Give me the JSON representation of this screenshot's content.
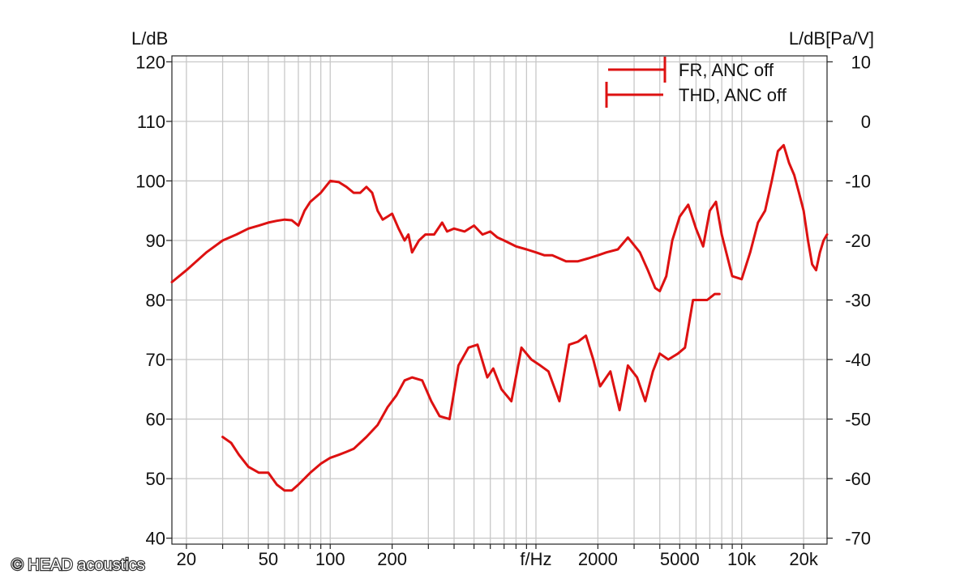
{
  "copyright": "© HEAD acoustics",
  "chart_data": {
    "type": "line",
    "xlabel": "f/Hz",
    "x_scale": "log",
    "xlim": [
      17,
      26000
    ],
    "x_ticks": [
      "20",
      "50",
      "100",
      "200",
      "f/Hz",
      "2000",
      "5000",
      "10k",
      "20k"
    ],
    "left_axis": {
      "label": "L/dB",
      "ylim": [
        39,
        121
      ],
      "ticks": [
        120,
        110,
        100,
        90,
        80,
        70,
        60,
        50,
        40
      ]
    },
    "right_axis": {
      "label": "L/dB[Pa/V]",
      "ylim": [
        -71,
        11
      ],
      "ticks": [
        10,
        0,
        -10,
        -20,
        -30,
        -40,
        -50,
        -60,
        -70
      ]
    },
    "grid": true,
    "legend_position": "top-right",
    "colors": {
      "series": "#dd1111",
      "grid": "#c8c8c8",
      "axis": "#222222"
    },
    "series": [
      {
        "name": "FR, ANC off",
        "axis": "left",
        "x": [
          17,
          20,
          25,
          30,
          35,
          40,
          45,
          50,
          55,
          60,
          65,
          70,
          75,
          80,
          90,
          100,
          110,
          120,
          130,
          140,
          150,
          160,
          170,
          180,
          190,
          200,
          215,
          230,
          240,
          250,
          270,
          290,
          320,
          350,
          370,
          400,
          450,
          500,
          550,
          600,
          650,
          700,
          800,
          900,
          1000,
          1100,
          1200,
          1400,
          1600,
          1800,
          2000,
          2200,
          2500,
          2800,
          3200,
          3500,
          3800,
          4000,
          4300,
          4600,
          5000,
          5500,
          6000,
          6500,
          7000,
          7500,
          8000,
          9000,
          10000,
          11000,
          12000,
          13000,
          14000,
          15000,
          16000,
          17000,
          18000,
          19000,
          20000,
          21000,
          22000,
          23000,
          24000,
          25000,
          26000
        ],
        "values": [
          83,
          85,
          88,
          90,
          91,
          92,
          92.5,
          93,
          93.3,
          93.5,
          93.4,
          92.5,
          95,
          96.5,
          98,
          100,
          99.8,
          99,
          98,
          98,
          99,
          98,
          95,
          93.5,
          94,
          94.5,
          92,
          90,
          91,
          88,
          90,
          91,
          91,
          93,
          91.5,
          92,
          91.5,
          92.5,
          91,
          91.5,
          90.5,
          90,
          89,
          88.5,
          88,
          87.5,
          87.5,
          86.5,
          86.5,
          87,
          87.5,
          88,
          88.5,
          90.5,
          88,
          85,
          82,
          81.5,
          84,
          90,
          94,
          96,
          92,
          89,
          95,
          96.5,
          91,
          84,
          83.5,
          88,
          93,
          95,
          100,
          105,
          106,
          103,
          101,
          98,
          95,
          90,
          86,
          85,
          88,
          90,
          91
        ]
      },
      {
        "name": "THD, ANC off",
        "axis": "right",
        "x": [
          30,
          33,
          36,
          40,
          45,
          50,
          55,
          60,
          65,
          70,
          80,
          90,
          100,
          110,
          120,
          130,
          150,
          170,
          190,
          210,
          230,
          250,
          280,
          310,
          340,
          380,
          420,
          470,
          520,
          580,
          620,
          680,
          760,
          850,
          950,
          1050,
          1150,
          1300,
          1450,
          1600,
          1750,
          1900,
          2050,
          2300,
          2550,
          2800,
          3100,
          3400,
          3700,
          4000,
          4400,
          4900,
          5300,
          5800,
          6300,
          6800,
          7400,
          7800
        ],
        "values": [
          -53,
          -54,
          -56,
          -58,
          -59,
          -59,
          -61,
          -62,
          -62,
          -61,
          -59,
          -57.5,
          -56.5,
          -56,
          -55.5,
          -55,
          -53,
          -51,
          -48,
          -46,
          -43.5,
          -43,
          -43.5,
          -47,
          -49.5,
          -50,
          -41,
          -38,
          -37.5,
          -43,
          -41.5,
          -45,
          -47,
          -38,
          -40,
          -41,
          -42,
          -47,
          -37.5,
          -37,
          -36,
          -40,
          -44.5,
          -42,
          -48.5,
          -41,
          -43,
          -47,
          -42,
          -39,
          -40,
          -39,
          -38,
          -30,
          -30,
          -30,
          -29,
          -29
        ]
      }
    ],
    "legend": [
      {
        "label": "FR, ANC off"
      },
      {
        "label": "THD, ANC off"
      }
    ]
  }
}
